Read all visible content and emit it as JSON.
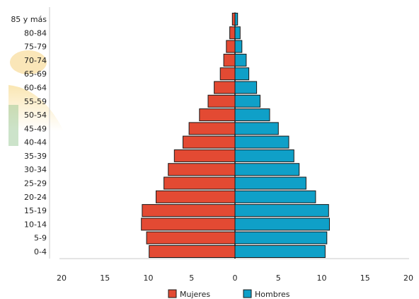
{
  "chart_data": {
    "type": "bar",
    "orientation": "horizontal",
    "layout": "population-pyramid",
    "categories": [
      "0-4",
      "5-9",
      "10-14",
      "15-19",
      "20-24",
      "25-29",
      "30-34",
      "35-39",
      "40-44",
      "45-49",
      "50-54",
      "55-59",
      "60-64",
      "65-69",
      "70-74",
      "75-79",
      "80-84",
      "85 y más"
    ],
    "series": [
      {
        "name": "Mujeres",
        "color": "#e34a33",
        "side": "left",
        "values": [
          9.9,
          10.2,
          10.8,
          10.7,
          9.1,
          8.2,
          7.7,
          7.0,
          6.0,
          5.3,
          4.1,
          3.1,
          2.4,
          1.7,
          1.3,
          1.0,
          0.6,
          0.3
        ]
      },
      {
        "name": "Hombres",
        "color": "#0fa0c8",
        "side": "right",
        "values": [
          10.4,
          10.6,
          10.9,
          10.8,
          9.3,
          8.2,
          7.4,
          6.8,
          6.2,
          5.0,
          4.0,
          2.9,
          2.5,
          1.6,
          1.3,
          0.8,
          0.6,
          0.3
        ]
      }
    ],
    "xlim": [
      -20,
      20
    ],
    "xticks": [
      "20",
      "15",
      "10",
      "5",
      "0",
      "5",
      "10",
      "15",
      "20"
    ],
    "grid": false,
    "legend": "bottom-center"
  }
}
